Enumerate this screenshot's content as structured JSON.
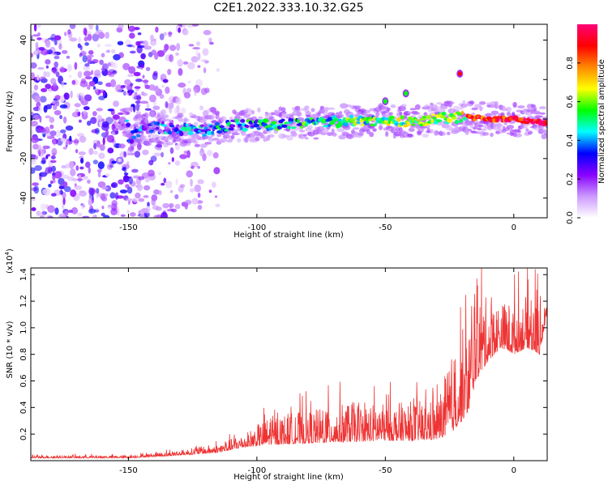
{
  "figure": {
    "title": "C2E1.2022.333.10.32.G25"
  },
  "chart_data": [
    {
      "type": "heatmap",
      "xlabel": "Height of straight line (km)",
      "ylabel": "Frequency (Hz)",
      "xlim": [
        -188,
        13
      ],
      "ylim": [
        -50,
        48
      ],
      "x_ticks": [
        -150,
        -100,
        -50,
        0
      ],
      "x_tick_labels": [
        "-150",
        "-100",
        "-50",
        "0"
      ],
      "y_ticks": [
        -40,
        -20,
        0,
        20,
        40
      ],
      "y_tick_labels": [
        "-40",
        "-20",
        "0",
        "20",
        "40"
      ],
      "colorbar": {
        "label": "Normalized spectral amplitude",
        "range": [
          0,
          1
        ],
        "ticks": [
          0.0,
          0.2,
          0.4,
          0.6,
          0.8
        ],
        "tick_labels": [
          "0.0",
          "0.2",
          "0.4",
          "0.6",
          "0.8"
        ],
        "colors": [
          "#ffffff",
          "#cc99ff",
          "#8800ff",
          "#0000ff",
          "#00ffff",
          "#00ff00",
          "#ffff00",
          "#ff8800",
          "#ff0000",
          "#ff0077"
        ]
      },
      "ridge": {
        "description_points": [
          {
            "x": -150,
            "y": -14
          },
          {
            "x": -148,
            "y": -7
          },
          {
            "x": -140,
            "y": -4
          },
          {
            "x": -130,
            "y": -5
          },
          {
            "x": -120,
            "y": -6
          },
          {
            "x": -110,
            "y": -3
          },
          {
            "x": -100,
            "y": -3
          },
          {
            "x": -80,
            "y": -2
          },
          {
            "x": -60,
            "y": -1
          },
          {
            "x": -40,
            "y": -1
          },
          {
            "x": -20,
            "y": 1
          },
          {
            "x": -10,
            "y": 0
          },
          {
            "x": 0,
            "y": 0
          },
          {
            "x": 12,
            "y": -2
          }
        ],
        "outliers": [
          {
            "x": -42,
            "y": 13
          },
          {
            "x": -21,
            "y": 23
          },
          {
            "x": -50,
            "y": 9
          }
        ]
      },
      "noise_region_x": [
        -188,
        -115
      ]
    },
    {
      "type": "line",
      "xlabel": "Height of straight line (km)",
      "ylabel": "SNR (10 * v/v)",
      "y_scale_label": "(x10",
      "y_scale_exponent": "4",
      "y_scale_close": ")",
      "xlim": [
        -188,
        13
      ],
      "ylim": [
        0,
        1.45
      ],
      "x_ticks": [
        -150,
        -100,
        -50,
        0
      ],
      "x_tick_labels": [
        "-150",
        "-100",
        "-50",
        "0"
      ],
      "y_ticks": [
        0.2,
        0.4,
        0.6,
        0.8,
        1.0,
        1.2,
        1.4
      ],
      "y_tick_labels": [
        "0.2",
        "0.4",
        "0.6",
        "0.8",
        "1.0",
        "1.2",
        "1.4"
      ],
      "series": [
        {
          "color": "#ee3333",
          "envelope": [
            {
              "x": -188,
              "base": 0.02,
              "spread": 0.02
            },
            {
              "x": -150,
              "base": 0.02,
              "spread": 0.02
            },
            {
              "x": -130,
              "base": 0.04,
              "spread": 0.04
            },
            {
              "x": -115,
              "base": 0.06,
              "spread": 0.07
            },
            {
              "x": -105,
              "base": 0.1,
              "spread": 0.1
            },
            {
              "x": -95,
              "base": 0.12,
              "spread": 0.22
            },
            {
              "x": -80,
              "base": 0.13,
              "spread": 0.25
            },
            {
              "x": -65,
              "base": 0.14,
              "spread": 0.3
            },
            {
              "x": -50,
              "base": 0.15,
              "spread": 0.28
            },
            {
              "x": -40,
              "base": 0.15,
              "spread": 0.3
            },
            {
              "x": -30,
              "base": 0.16,
              "spread": 0.3
            },
            {
              "x": -25,
              "base": 0.2,
              "spread": 0.55
            },
            {
              "x": -20,
              "base": 0.3,
              "spread": 0.7
            },
            {
              "x": -17,
              "base": 0.4,
              "spread": 0.6
            },
            {
              "x": -15,
              "base": 0.6,
              "spread": 0.8
            },
            {
              "x": -10,
              "base": 0.75,
              "spread": 0.45
            },
            {
              "x": -5,
              "base": 0.85,
              "spread": 0.35
            },
            {
              "x": 0,
              "base": 0.8,
              "spread": 0.4
            },
            {
              "x": 5,
              "base": 0.85,
              "spread": 0.4
            },
            {
              "x": 10,
              "base": 0.8,
              "spread": 0.45
            },
            {
              "x": 13,
              "base": 1.08,
              "spread": 0.1
            }
          ]
        }
      ]
    }
  ]
}
